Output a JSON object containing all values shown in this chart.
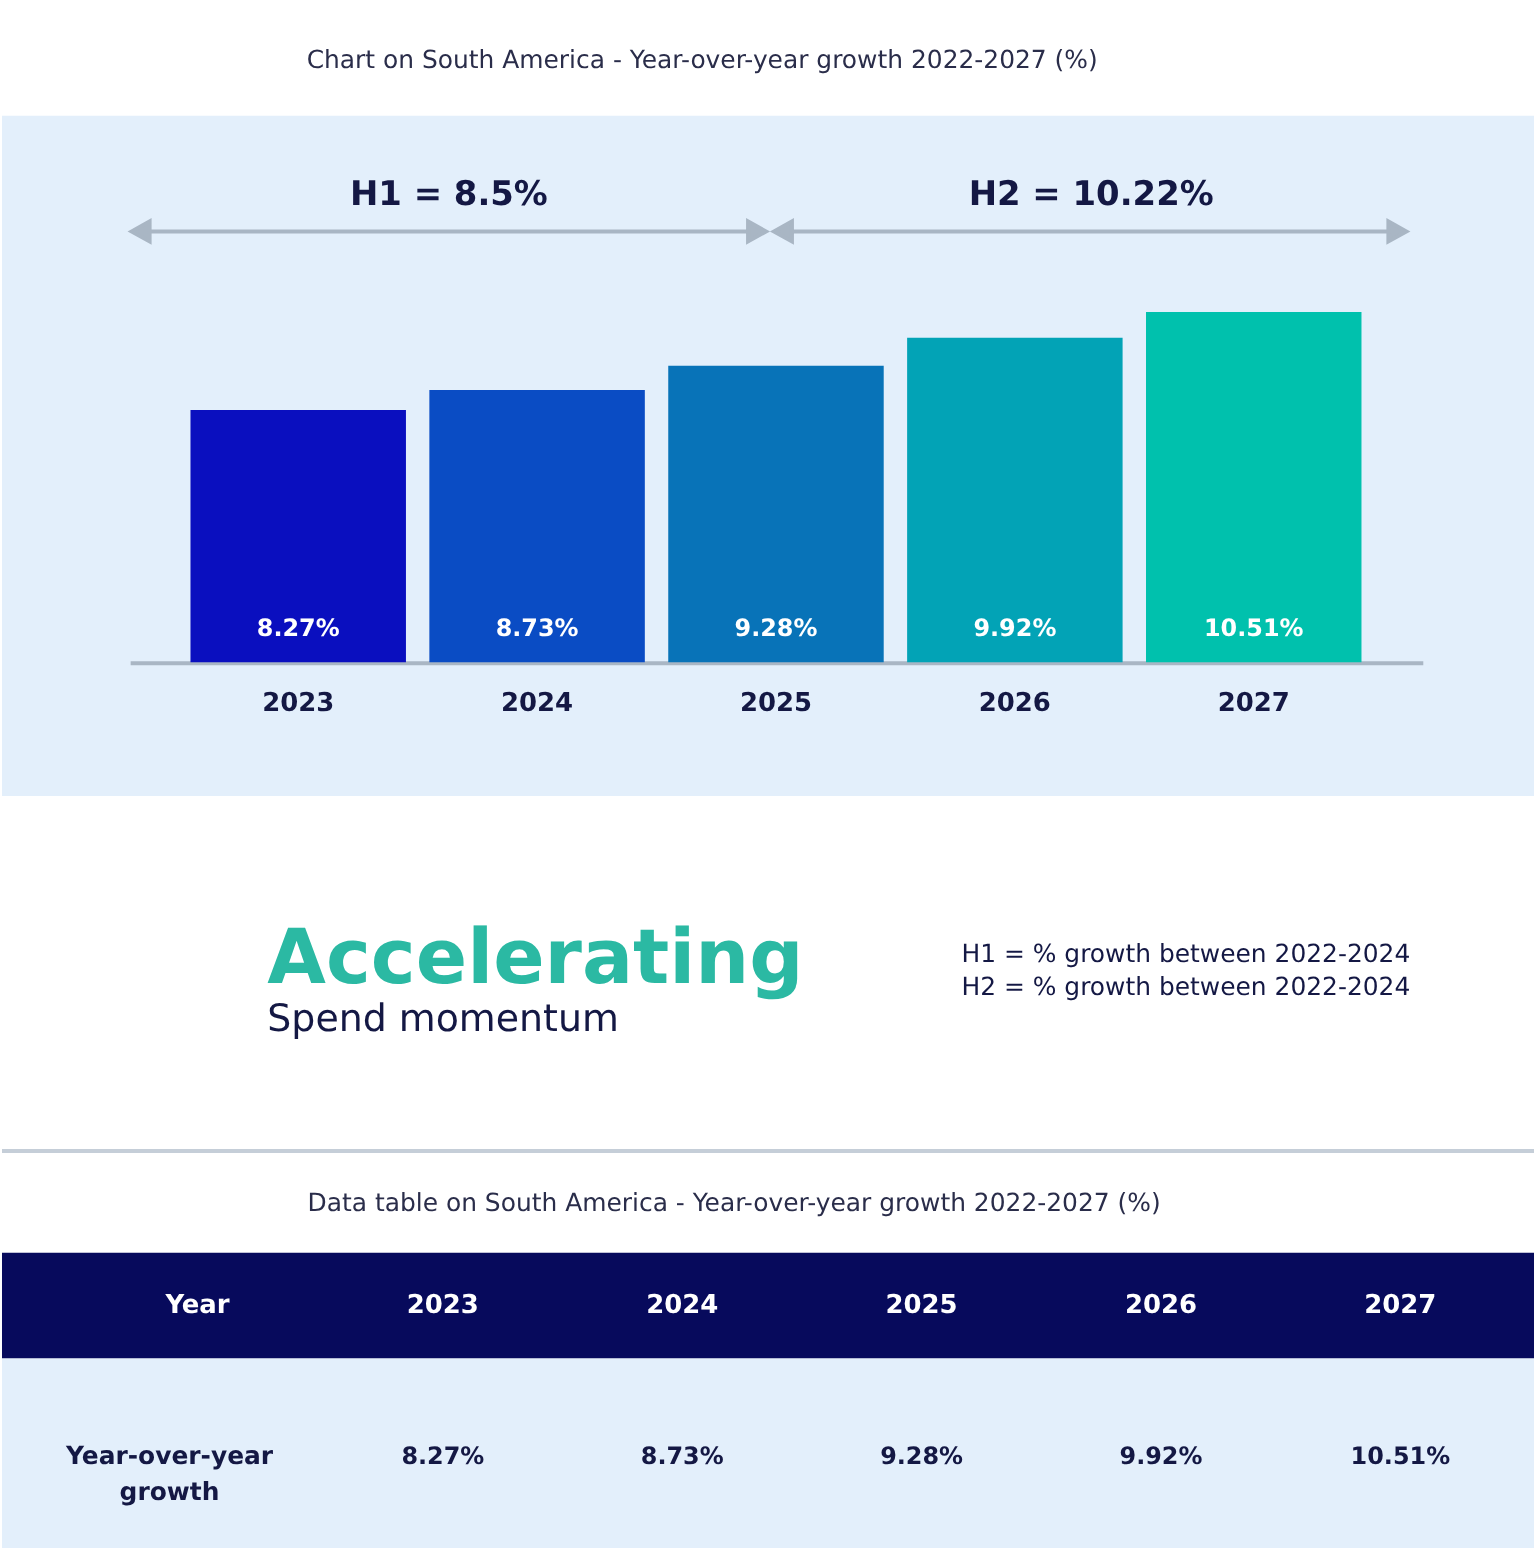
{
  "chart_data": {
    "type": "bar",
    "title": "Chart on South America - Year-over-year growth 2022-2027 (%)",
    "categories": [
      "2023",
      "2024",
      "2025",
      "2026",
      "2027"
    ],
    "values": [
      8.27,
      8.73,
      9.28,
      9.92,
      10.51
    ],
    "colors": [
      "#0a0fbf",
      "#0a4cc4",
      "#0873b8",
      "#02a3b6",
      "#00c1ad"
    ],
    "value_labels": [
      "8.27%",
      "8.73%",
      "9.28%",
      "9.92%",
      "10.51%"
    ],
    "ylim": [
      2.5,
      15
    ],
    "tick_labels": "x",
    "annotations": [
      "H1 = 8.5%",
      "H2 = 10.22%",
      "Accelerating",
      "Spend momentum",
      "H1 = % growth between 2022-2024",
      "H2 = % growth between 2022-2024",
      "Data table on South America - Year-over-year growth 2022-2027 (%)",
      "Year",
      "Year-over-year growth"
    ]
  }
}
